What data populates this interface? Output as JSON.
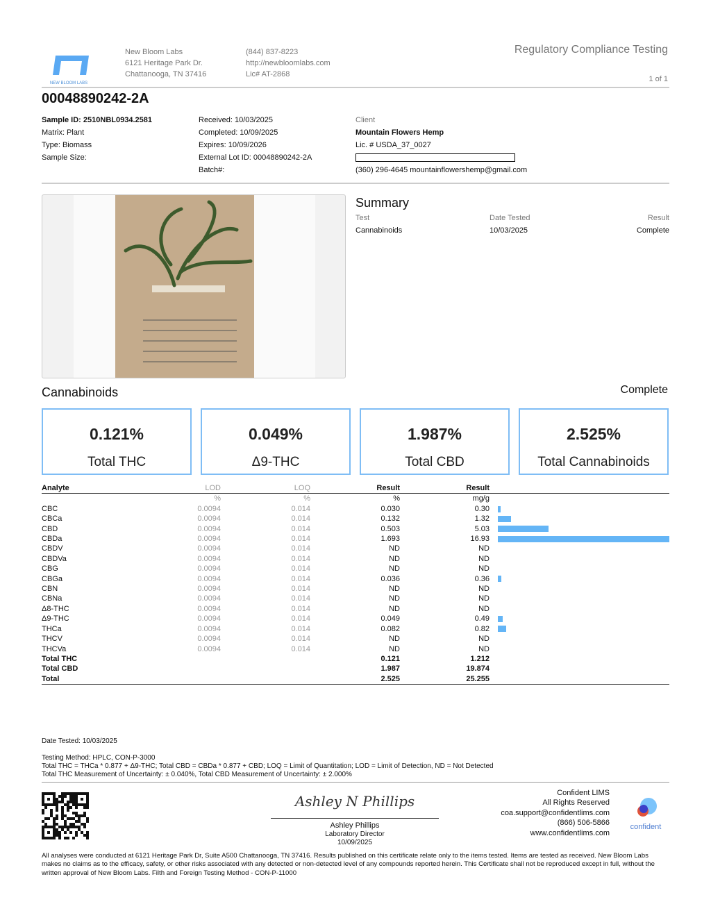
{
  "lab": {
    "logo_text": "NEW BLOOM LABS",
    "name": "New Bloom Labs",
    "address1": "6121 Heritage Park Dr.",
    "address2": "Chattanooga, TN 37416",
    "phone": "(844) 837-8223",
    "website": "http://newbloomlabs.com",
    "license": "Lic# AT-2868"
  },
  "header": {
    "title": "Regulatory Compliance Testing",
    "page": "1 of 1"
  },
  "sample": {
    "id_title": "00048890242-2A",
    "sample_id": "Sample ID: 2510NBL0934.2581",
    "matrix": "Matrix: Plant",
    "type": "Type: Biomass",
    "size": "Sample Size:",
    "received": "Received: 10/03/2025",
    "completed": "Completed: 10/09/2025",
    "expires": "Expires: 10/09/2026",
    "lot": "External Lot ID: 00048890242-2A",
    "batch": "Batch#:"
  },
  "client": {
    "label": "Client",
    "name": "Mountain Flowers Hemp",
    "license": "Lic. # USDA_37_0027",
    "contact": "(360) 296-4645 mountainflowershemp@gmail.com"
  },
  "summary": {
    "title": "Summary",
    "headers": [
      "Test",
      "Date Tested",
      "Result"
    ],
    "row": [
      "Cannabinoids",
      "10/03/2025",
      "Complete"
    ]
  },
  "cannabinoids": {
    "title": "Cannabinoids",
    "status": "Complete",
    "boxes": [
      {
        "value": "0.121%",
        "label": "Total THC"
      },
      {
        "value": "0.049%",
        "label": "Δ9-THC"
      },
      {
        "value": "1.987%",
        "label": "Total CBD"
      },
      {
        "value": "2.525%",
        "label": "Total Cannabinoids"
      }
    ],
    "headers": [
      "Analyte",
      "LOD",
      "LOQ",
      "Result",
      "Result"
    ],
    "units": [
      "",
      "%",
      "%",
      "%",
      "mg/g"
    ],
    "bar_color": "#64b5f6",
    "rows": [
      [
        "CBC",
        "0.0094",
        "0.014",
        "0.030",
        "0.30"
      ],
      [
        "CBCa",
        "0.0094",
        "0.014",
        "0.132",
        "1.32"
      ],
      [
        "CBD",
        "0.0094",
        "0.014",
        "0.503",
        "5.03"
      ],
      [
        "CBDa",
        "0.0094",
        "0.014",
        "1.693",
        "16.93"
      ],
      [
        "CBDV",
        "0.0094",
        "0.014",
        "ND",
        "ND"
      ],
      [
        "CBDVa",
        "0.0094",
        "0.014",
        "ND",
        "ND"
      ],
      [
        "CBG",
        "0.0094",
        "0.014",
        "ND",
        "ND"
      ],
      [
        "CBGa",
        "0.0094",
        "0.014",
        "0.036",
        "0.36"
      ],
      [
        "CBN",
        "0.0094",
        "0.014",
        "ND",
        "ND"
      ],
      [
        "CBNa",
        "0.0094",
        "0.014",
        "ND",
        "ND"
      ],
      [
        "Δ8-THC",
        "0.0094",
        "0.014",
        "ND",
        "ND"
      ],
      [
        "Δ9-THC",
        "0.0094",
        "0.014",
        "0.049",
        "0.49"
      ],
      [
        "THCa",
        "0.0094",
        "0.014",
        "0.082",
        "0.82"
      ],
      [
        "THCV",
        "0.0094",
        "0.014",
        "ND",
        "ND"
      ],
      [
        "THCVa",
        "0.0094",
        "0.014",
        "ND",
        "ND"
      ]
    ],
    "totals": [
      [
        "Total THC",
        "0.121",
        "1.212"
      ],
      [
        "Total CBD",
        "1.987",
        "19.874"
      ],
      [
        "Total",
        "2.525",
        "25.255"
      ]
    ]
  },
  "notes": {
    "date_tested": "Date Tested: 10/03/2025",
    "method": "Testing Method: HPLC, CON-P-3000",
    "formula": "Total THC = THCa * 0.877 + Δ9-THC; Total CBD = CBDa * 0.877 + CBD; LOQ = Limit of Quantitation; LOD = Limit of Detection, ND = Not Detected",
    "uncertainty": "Total THC Measurement of Uncertainty: ± 0.040%, Total CBD Measurement of Uncertainty: ± 2.000%"
  },
  "signature": {
    "script": "Ashley N Phillips",
    "name": "Ashley Phillips",
    "title": "Laboratory Director",
    "date": "10/09/2025"
  },
  "lims": {
    "name": "Confident LIMS",
    "rights": "All Rights Reserved",
    "email": "coa.support@confidentlims.com",
    "phone": "(866) 506-5866",
    "website": "www.confidentlims.com",
    "logo_text": "confident"
  },
  "disclaimer": "All analyses were conducted at 6121 Heritage Park Dr, Suite A500 Chattanooga, TN 37416. Results published on this certificate relate only to the items tested. Items are tested as received. New Bloom Labs makes no claims as to the efficacy, safety, or other risks associated with any detected or non-detected level of any compounds reported herein. This Certificate shall not be reproduced except in full, without the written approval of New Bloom Labs. Filth and Foreign Testing Method - CON-P-11000"
}
